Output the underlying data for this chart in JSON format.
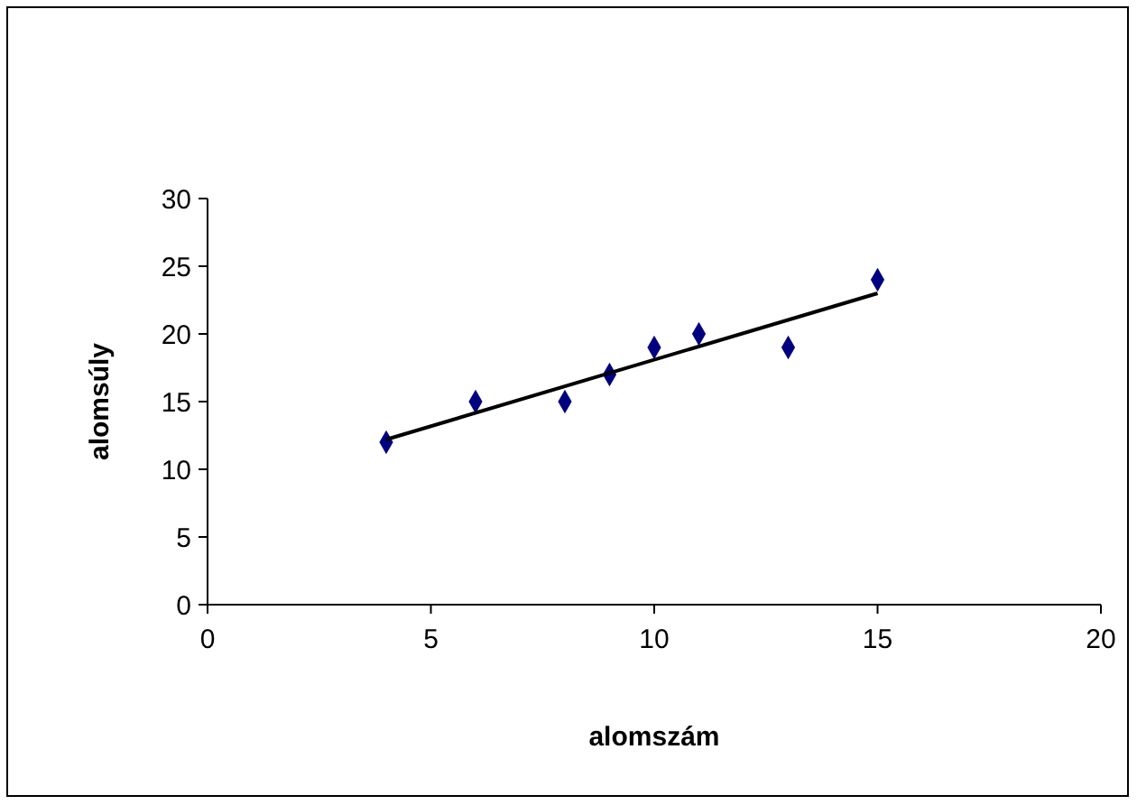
{
  "chart_data": {
    "type": "scatter",
    "xlabel": "alomszám",
    "ylabel": "alomsúly",
    "xlim": [
      0,
      20
    ],
    "xticks": [
      0,
      5,
      10,
      15,
      20
    ],
    "ylim": [
      0,
      30
    ],
    "yticks": [
      0,
      5,
      10,
      15,
      20,
      25,
      30
    ],
    "grid": false,
    "series": [
      {
        "color": "#000080",
        "marker": "diamond",
        "x": [
          4,
          6,
          8,
          9,
          10,
          11,
          13,
          15
        ],
        "values": [
          12,
          15,
          15,
          17,
          19,
          20,
          19,
          24
        ]
      },
      {
        "type": "line",
        "color": "#000000",
        "marker": "none",
        "line_style": "solid",
        "x": [
          4,
          15
        ],
        "values": [
          12.2,
          23.0
        ]
      }
    ]
  }
}
